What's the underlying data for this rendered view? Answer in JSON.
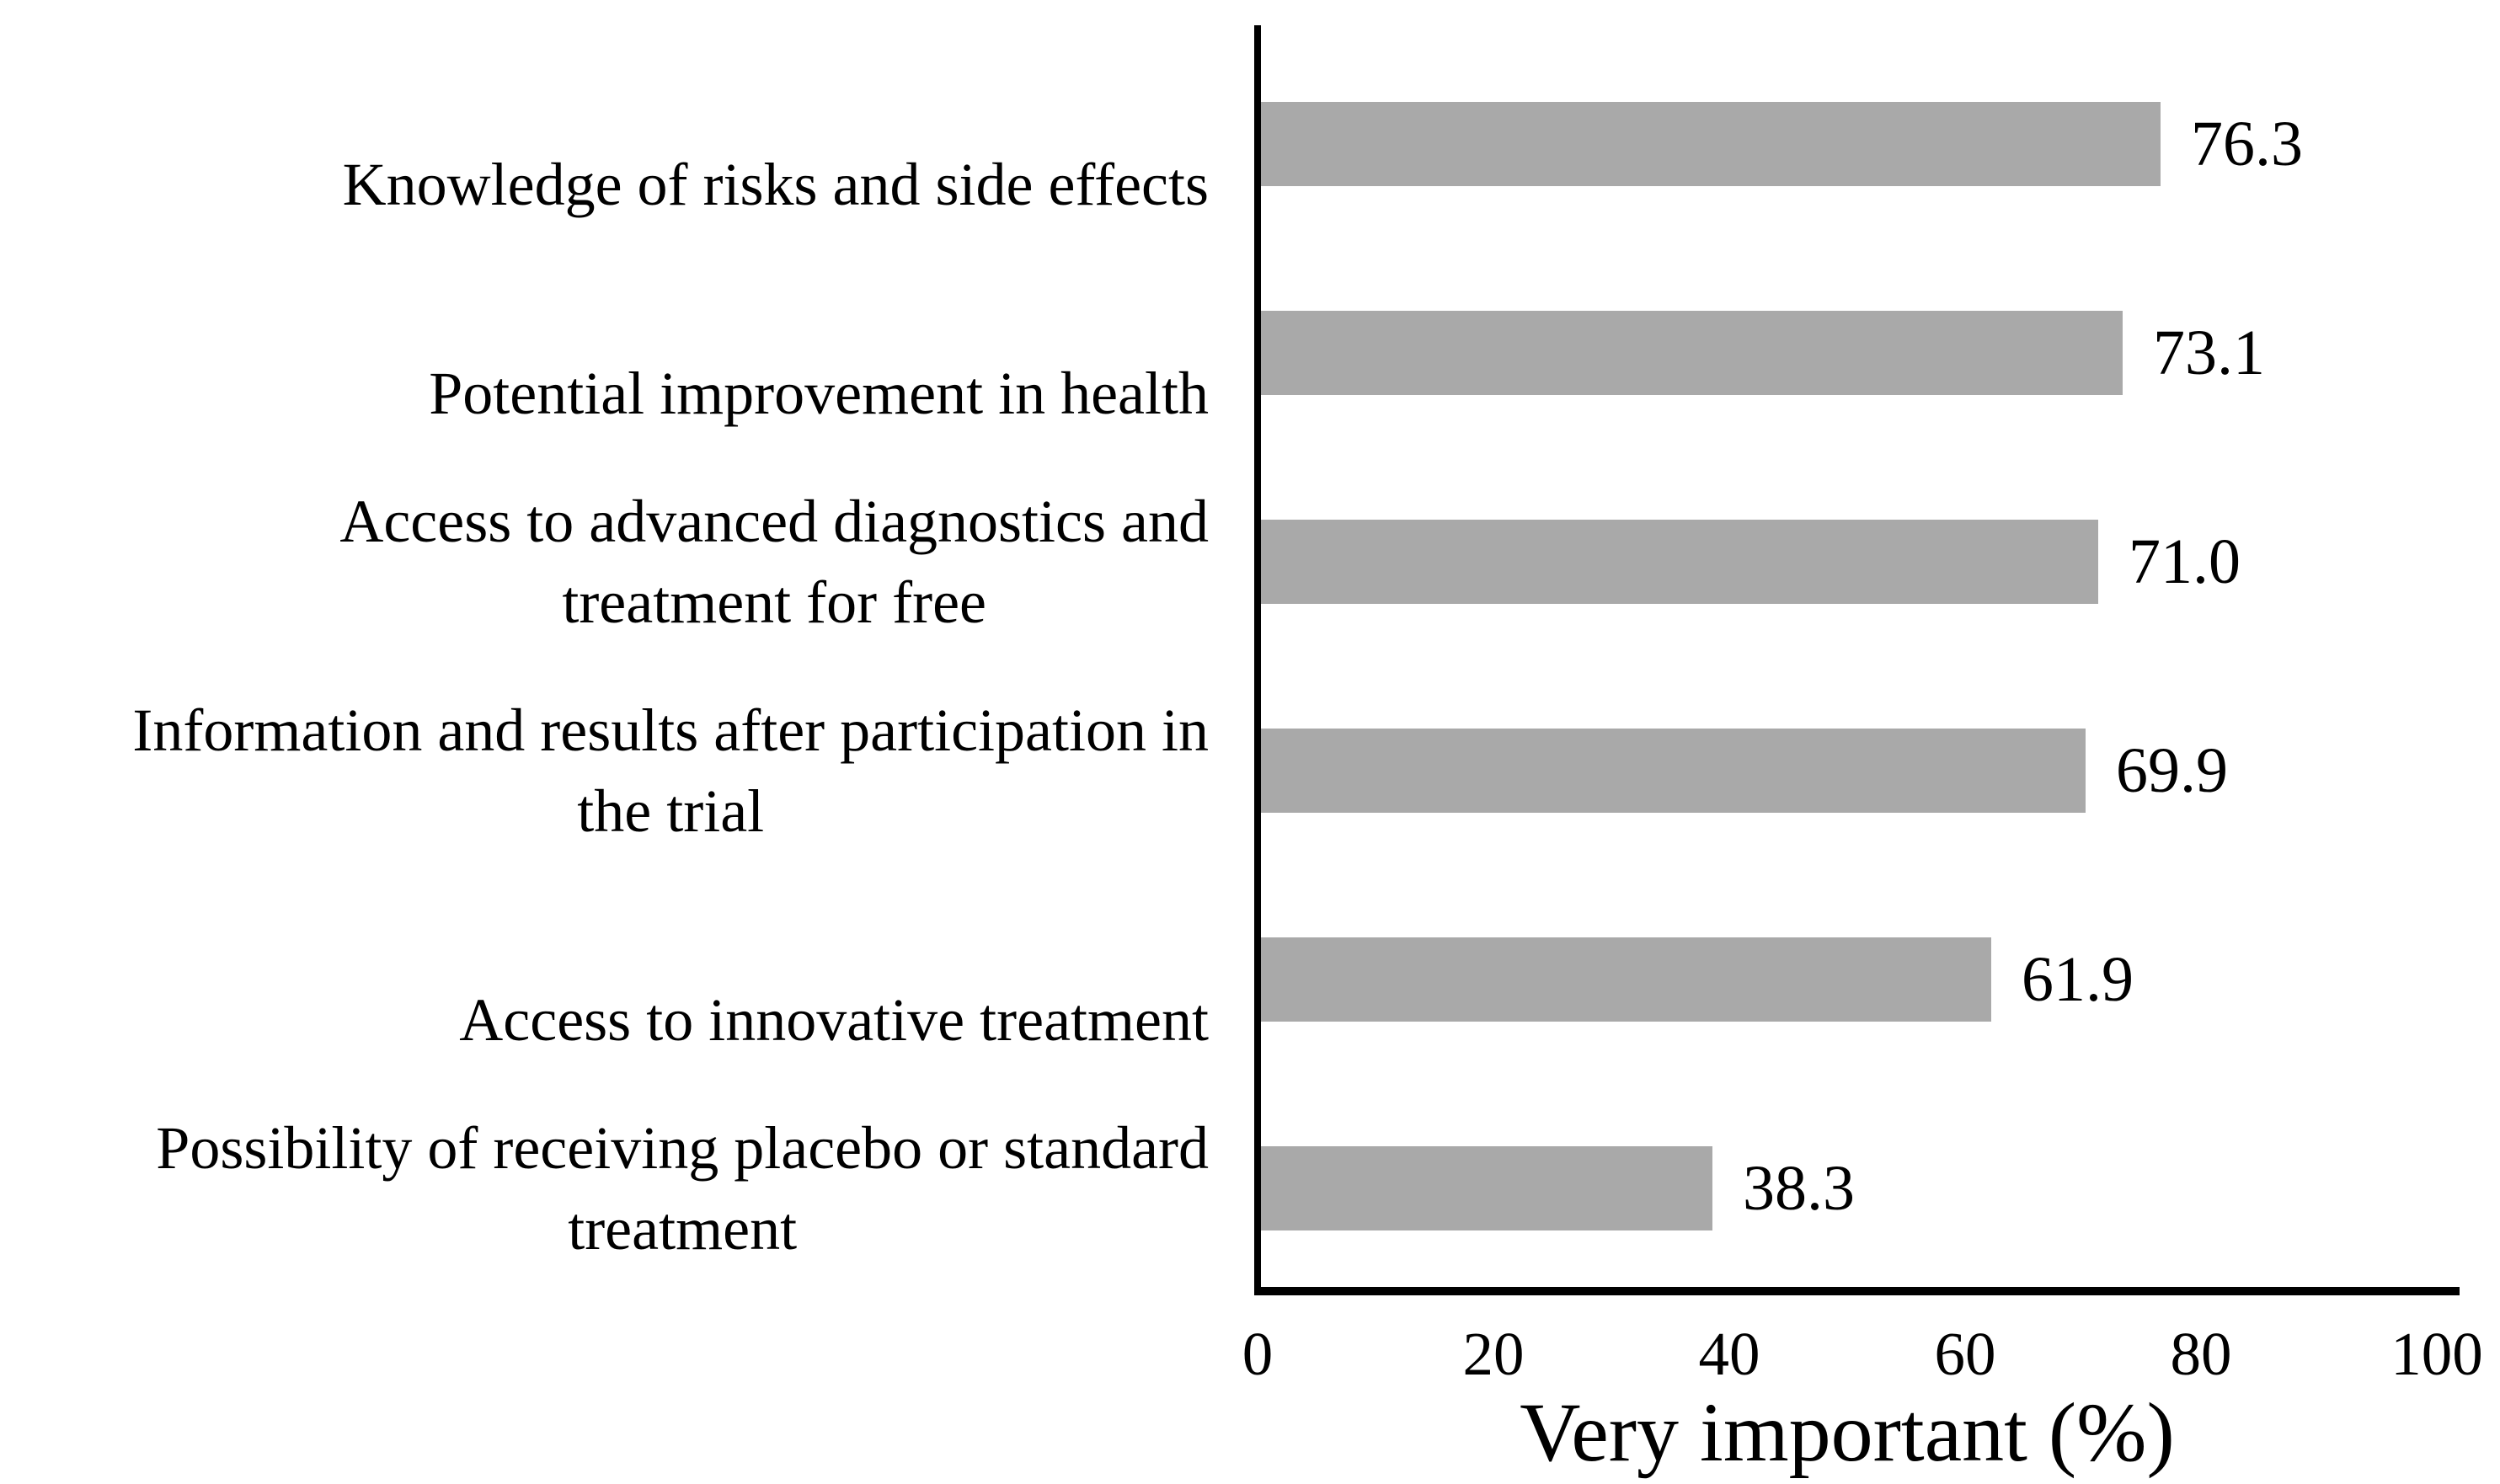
{
  "chart_data": {
    "type": "bar",
    "orientation": "horizontal",
    "title": "",
    "xlabel": "Very important (%)",
    "ylabel": "",
    "xlim": [
      0,
      100
    ],
    "xticks": [
      "0",
      "20",
      "40",
      "60",
      "80",
      "100"
    ],
    "grid": false,
    "legend": "none",
    "bar_color": "#A9A9A9",
    "axis_color": "#000000",
    "categories": [
      "Knowledge of risks and side effects",
      "Potential improvement in health",
      "Access to advanced diagnostics and\ntreatment for free",
      "Information and results after participation in\nthe trial",
      "Access to innovative treatment",
      "Possibility of receiving placebo or standard\ntreatment"
    ],
    "values": [
      76.3,
      73.1,
      71.0,
      69.9,
      61.9,
      38.3
    ],
    "value_labels": [
      "76.3",
      "73.1",
      "71.0",
      "69.9",
      "61.9",
      "38.3"
    ]
  }
}
